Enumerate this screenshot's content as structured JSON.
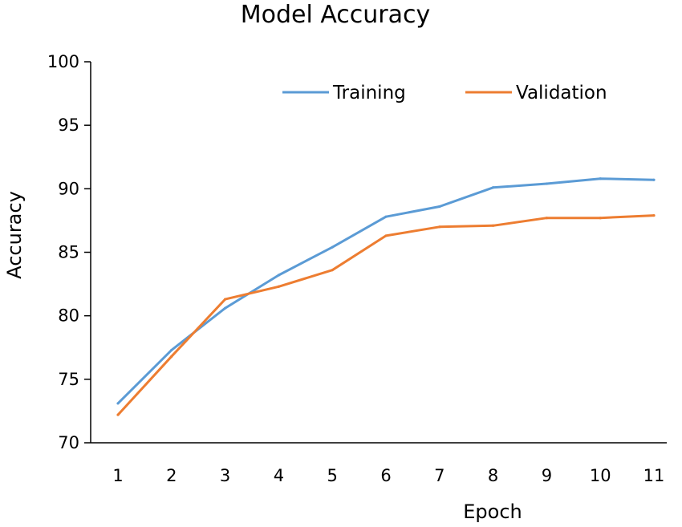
{
  "chart_data": {
    "type": "line",
    "title": "Model Accuracy",
    "xlabel": "Epoch",
    "ylabel": "Accuracy",
    "x": [
      1,
      2,
      3,
      4,
      5,
      6,
      7,
      8,
      9,
      10,
      11
    ],
    "ylim": [
      70,
      100
    ],
    "yticks": [
      70,
      75,
      80,
      85,
      90,
      95,
      100
    ],
    "grid": false,
    "legend": "top-right",
    "series": [
      {
        "name": "Training",
        "color": "#5b9bd5",
        "values": [
          73.1,
          77.3,
          80.6,
          83.2,
          85.4,
          87.8,
          88.6,
          90.1,
          90.4,
          90.8,
          90.7
        ]
      },
      {
        "name": "Validation",
        "color": "#ed7d31",
        "values": [
          72.2,
          76.8,
          81.3,
          82.3,
          83.6,
          86.3,
          87.0,
          87.1,
          87.7,
          87.7,
          87.9
        ]
      }
    ]
  }
}
